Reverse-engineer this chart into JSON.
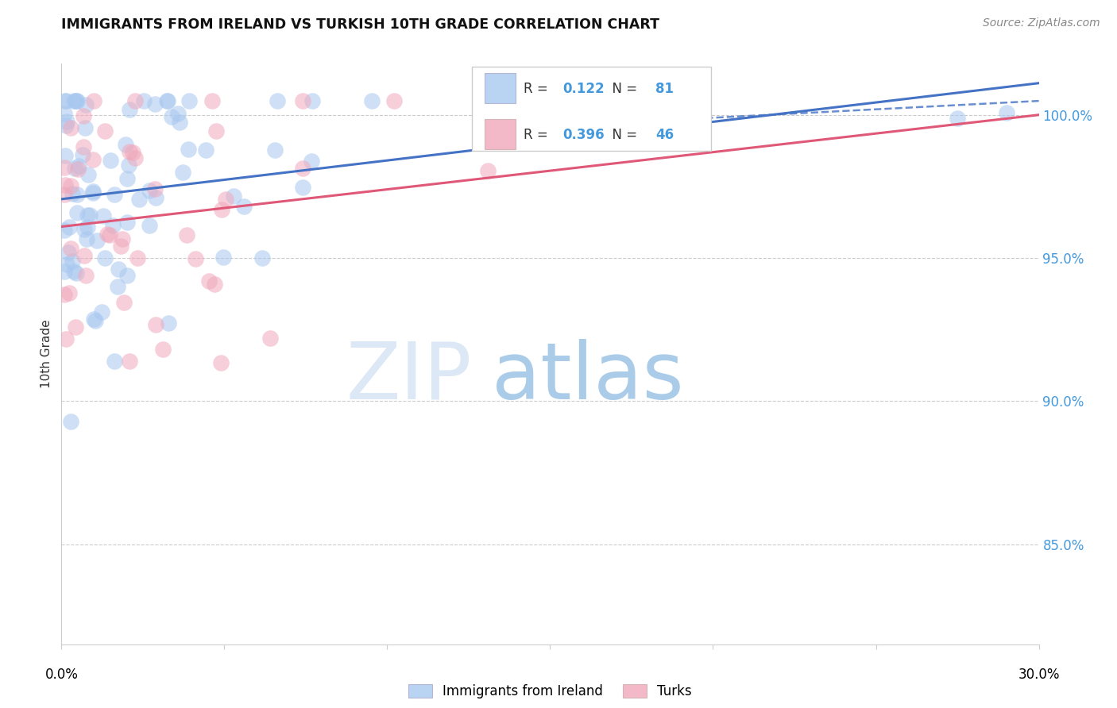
{
  "title": "IMMIGRANTS FROM IRELAND VS TURKISH 10TH GRADE CORRELATION CHART",
  "source": "Source: ZipAtlas.com",
  "legend_ireland": "Immigrants from Ireland",
  "legend_turks": "Turks",
  "R_ireland": 0.122,
  "N_ireland": 81,
  "R_turks": 0.396,
  "N_turks": 46,
  "color_ireland": "#A8C8F0",
  "color_turks": "#F0A8BC",
  "line_color_ireland": "#4472C4",
  "line_color_turks": "#E05878",
  "background_color": "#FFFFFF",
  "xmin": 0.0,
  "xmax": 0.3,
  "ymin": 0.815,
  "ymax": 1.018,
  "ytick_vals": [
    0.85,
    0.9,
    0.95,
    1.0
  ],
  "ytick_labels": [
    "85.0%",
    "90.0%",
    "95.0%",
    "100.0%"
  ]
}
